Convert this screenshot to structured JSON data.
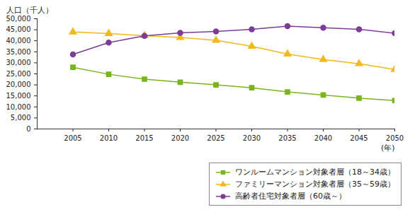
{
  "chart_data": {
    "type": "line",
    "y_label": "人口（千人）",
    "x_label": "(年)",
    "x": [
      2005,
      2010,
      2015,
      2020,
      2025,
      2030,
      2035,
      2040,
      2045,
      2050
    ],
    "xlim": [
      2000,
      2050
    ],
    "xticks": [
      2005,
      2010,
      2015,
      2020,
      2025,
      2030,
      2035,
      2040,
      2045,
      2050
    ],
    "ylim": [
      0,
      50000
    ],
    "yticks": [
      0,
      {
        "value": 5000,
        "label": "5,000"
      },
      {
        "value": 10000,
        "label": "10,000"
      },
      {
        "value": 15000,
        "label": "15,000"
      },
      {
        "value": 20000,
        "label": "20,000"
      },
      {
        "value": 25000,
        "label": "25,000"
      },
      {
        "value": 30000,
        "label": "30,000"
      },
      {
        "value": 35000,
        "label": "35,000"
      },
      {
        "value": 40000,
        "label": "40,000"
      },
      {
        "value": 45000,
        "label": "45,000"
      },
      {
        "value": 50000,
        "label": "50,000"
      }
    ],
    "grid": false,
    "legend": "bottom-right",
    "series": [
      {
        "name": "ワンルームマンション対象者層（18～34歳）",
        "color": "#7ab51d",
        "marker": "square",
        "values": [
          28000,
          24800,
          22600,
          21200,
          20000,
          18700,
          16800,
          15400,
          14000,
          12900
        ]
      },
      {
        "name": "ファミリーマンション対象者層（35～59歳）",
        "color": "#f5b81c",
        "marker": "triangle",
        "values": [
          44000,
          43300,
          42300,
          41500,
          40200,
          37500,
          34000,
          31500,
          29600,
          27000
        ]
      },
      {
        "name": "高齢者住宅対象者層（60歳～）",
        "color": "#7d3c98",
        "marker": "circle",
        "values": [
          33800,
          39200,
          42200,
          43600,
          44200,
          45200,
          46600,
          45900,
          45200,
          43400
        ]
      }
    ]
  }
}
